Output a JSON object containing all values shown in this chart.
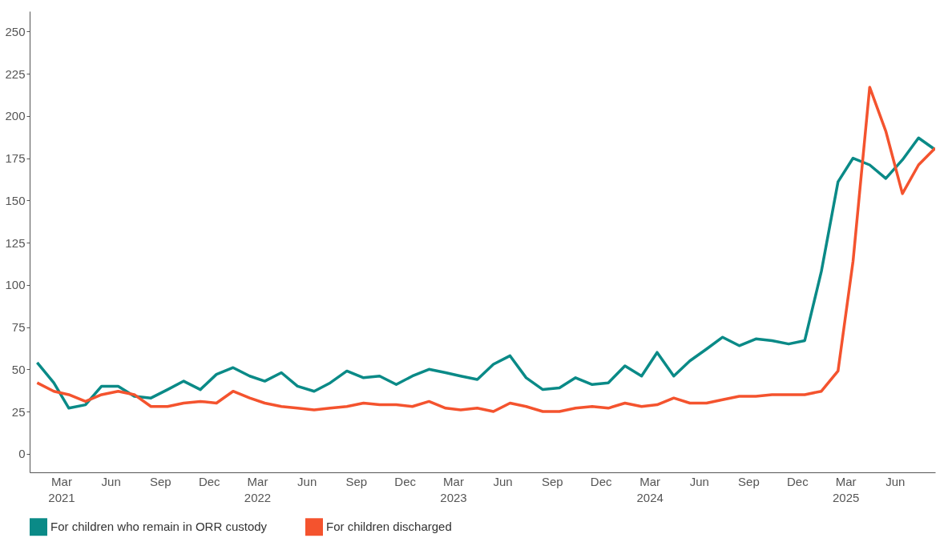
{
  "chart_data": {
    "type": "line",
    "x": [
      "2021-01-15",
      "2021-02-15",
      "2021-03-15",
      "2021-04-15",
      "2021-05-15",
      "2021-06-15",
      "2021-07-15",
      "2021-08-15",
      "2021-09-15",
      "2021-10-15",
      "2021-11-15",
      "2021-12-15",
      "2022-01-15",
      "2022-02-15",
      "2022-03-15",
      "2022-04-15",
      "2022-05-15",
      "2022-06-15",
      "2022-07-15",
      "2022-08-15",
      "2022-09-15",
      "2022-10-15",
      "2022-11-15",
      "2022-12-15",
      "2023-01-15",
      "2023-02-15",
      "2023-03-15",
      "2023-04-15",
      "2023-05-15",
      "2023-06-15",
      "2023-07-15",
      "2023-08-15",
      "2023-09-15",
      "2023-10-15",
      "2023-11-15",
      "2023-12-15",
      "2024-01-15",
      "2024-02-15",
      "2024-03-15",
      "2024-04-15",
      "2024-05-15",
      "2024-06-15",
      "2024-07-15",
      "2024-08-15",
      "2024-09-15",
      "2024-10-15",
      "2024-11-15",
      "2024-12-15",
      "2025-01-15",
      "2025-02-15",
      "2025-03-15",
      "2025-04-15",
      "2025-05-15",
      "2025-06-15",
      "2025-07-15",
      "2025-08-15"
    ],
    "series": [
      {
        "name": "For children who remain in ORR custody",
        "color": "#0a8a87",
        "values": [
          54,
          42,
          27,
          29,
          40,
          40,
          34,
          33,
          38,
          43,
          38,
          47,
          51,
          46,
          43,
          48,
          40,
          37,
          42,
          49,
          45,
          46,
          41,
          46,
          50,
          48,
          46,
          44,
          53,
          58,
          45,
          38,
          39,
          45,
          41,
          42,
          52,
          46,
          60,
          46,
          55,
          62,
          69,
          64,
          68,
          67,
          65,
          67,
          108,
          161,
          175,
          171,
          163,
          174,
          187,
          180
        ]
      },
      {
        "name": "For children discharged",
        "color": "#f4532e",
        "values": [
          42,
          37,
          35,
          31,
          35,
          37,
          35,
          28,
          28,
          30,
          31,
          30,
          37,
          33,
          30,
          28,
          27,
          26,
          27,
          28,
          30,
          29,
          29,
          28,
          31,
          27,
          26,
          27,
          25,
          30,
          28,
          25,
          25,
          27,
          28,
          27,
          30,
          28,
          29,
          33,
          30,
          30,
          32,
          34,
          34,
          35,
          35,
          35,
          37,
          49,
          114,
          217,
          191,
          154,
          171,
          181
        ]
      }
    ],
    "ylim": [
      -11,
      262
    ],
    "yticks": [
      0,
      25,
      50,
      75,
      100,
      125,
      150,
      175,
      200,
      225,
      250
    ],
    "xlim": [
      "2021-01-01",
      "2025-08-15"
    ],
    "xticks": [
      {
        "value": "2021-03-01",
        "label": "Mar 2021"
      },
      {
        "value": "2021-06-01",
        "label": "Jun"
      },
      {
        "value": "2021-09-01",
        "label": "Sep"
      },
      {
        "value": "2021-12-01",
        "label": "Dec"
      },
      {
        "value": "2022-03-01",
        "label": "Mar 2022"
      },
      {
        "value": "2022-06-01",
        "label": "Jun"
      },
      {
        "value": "2022-09-01",
        "label": "Sep"
      },
      {
        "value": "2022-12-01",
        "label": "Dec"
      },
      {
        "value": "2023-03-01",
        "label": "Mar 2023"
      },
      {
        "value": "2023-06-01",
        "label": "Jun"
      },
      {
        "value": "2023-09-01",
        "label": "Sep"
      },
      {
        "value": "2023-12-01",
        "label": "Dec"
      },
      {
        "value": "2024-03-01",
        "label": "Mar 2024"
      },
      {
        "value": "2024-06-01",
        "label": "Jun"
      },
      {
        "value": "2024-09-01",
        "label": "Sep"
      },
      {
        "value": "2024-12-01",
        "label": "Dec"
      },
      {
        "value": "2025-03-01",
        "label": "Mar 2025"
      },
      {
        "value": "2025-06-01",
        "label": "Jun"
      }
    ],
    "grid": false,
    "legend": "bottom",
    "line_style": "solid",
    "marker": "none"
  }
}
